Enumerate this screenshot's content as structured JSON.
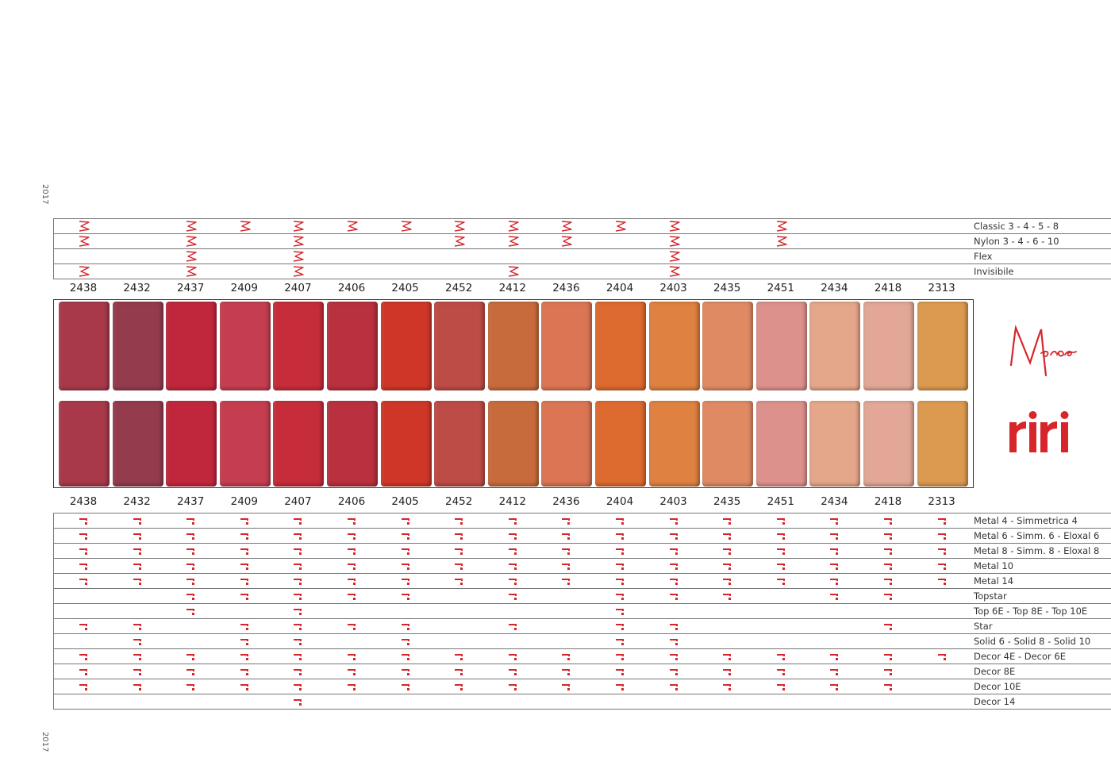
{
  "year_label": "2017",
  "codes": [
    "2438",
    "2432",
    "2437",
    "2409",
    "2407",
    "2406",
    "2405",
    "2452",
    "2412",
    "2436",
    "2404",
    "2403",
    "2435",
    "2451",
    "2434",
    "2418",
    "2313"
  ],
  "colors": [
    "#a8394a",
    "#943b4d",
    "#c0273c",
    "#c43e4f",
    "#c62c3a",
    "#b9303e",
    "#cf3628",
    "#bd4b46",
    "#c86b3c",
    "#db7553",
    "#dd6a2f",
    "#de8141",
    "#e08a64",
    "#dd918c",
    "#e5a789",
    "#e2a796",
    "#dc9a50"
  ],
  "zipper_rows": [
    {
      "label": "Classic 3 - 4 - 5 - 8",
      "marks": [
        1,
        0,
        1,
        1,
        1,
        1,
        1,
        1,
        1,
        1,
        1,
        1,
        0,
        1,
        0,
        0,
        0
      ]
    },
    {
      "label": "Nylon 3 - 4 - 6 - 10",
      "marks": [
        1,
        0,
        1,
        0,
        1,
        0,
        0,
        1,
        1,
        1,
        0,
        1,
        0,
        1,
        0,
        0,
        0
      ]
    },
    {
      "label": "Flex",
      "marks": [
        0,
        0,
        1,
        0,
        1,
        0,
        0,
        0,
        0,
        0,
        0,
        1,
        0,
        0,
        0,
        0,
        0
      ]
    },
    {
      "label": "Invisibile",
      "marks": [
        1,
        0,
        1,
        0,
        1,
        0,
        0,
        0,
        1,
        0,
        0,
        1,
        0,
        0,
        0,
        0,
        0
      ]
    }
  ],
  "riri_rows": [
    {
      "label": "Metal 4 - Simmetrica 4",
      "marks": [
        1,
        1,
        1,
        1,
        1,
        1,
        1,
        1,
        1,
        1,
        1,
        1,
        1,
        1,
        1,
        1,
        1
      ]
    },
    {
      "label": "Metal 6 - Simm. 6 - Eloxal 6",
      "marks": [
        1,
        1,
        1,
        1,
        1,
        1,
        1,
        1,
        1,
        1,
        1,
        1,
        1,
        1,
        1,
        1,
        1
      ]
    },
    {
      "label": "Metal 8 - Simm. 8 - Eloxal 8",
      "marks": [
        1,
        1,
        1,
        1,
        1,
        1,
        1,
        1,
        1,
        1,
        1,
        1,
        1,
        1,
        1,
        1,
        1
      ]
    },
    {
      "label": "Metal 10",
      "marks": [
        1,
        1,
        1,
        1,
        1,
        1,
        1,
        1,
        1,
        1,
        1,
        1,
        1,
        1,
        1,
        1,
        1
      ]
    },
    {
      "label": "Metal 14",
      "marks": [
        1,
        1,
        1,
        1,
        1,
        1,
        1,
        1,
        1,
        1,
        1,
        1,
        1,
        1,
        1,
        1,
        1
      ]
    },
    {
      "label": "Topstar",
      "marks": [
        0,
        0,
        1,
        1,
        1,
        1,
        1,
        0,
        1,
        0,
        1,
        1,
        1,
        0,
        1,
        1,
        0
      ]
    },
    {
      "label": "Top 6E - Top 8E - Top 10E",
      "marks": [
        0,
        0,
        1,
        0,
        1,
        0,
        0,
        0,
        0,
        0,
        1,
        0,
        0,
        0,
        0,
        0,
        0
      ]
    },
    {
      "label": "Star",
      "marks": [
        1,
        1,
        0,
        1,
        1,
        1,
        1,
        0,
        1,
        0,
        1,
        1,
        0,
        0,
        0,
        1,
        0
      ]
    },
    {
      "label": "Solid 6 - Solid 8 - Solid 10",
      "marks": [
        0,
        1,
        0,
        1,
        1,
        0,
        1,
        0,
        0,
        0,
        1,
        1,
        0,
        0,
        0,
        0,
        0
      ]
    },
    {
      "label": "Decor 4E - Decor 6E",
      "marks": [
        1,
        1,
        1,
        1,
        1,
        1,
        1,
        1,
        1,
        1,
        1,
        1,
        1,
        1,
        1,
        1,
        1
      ]
    },
    {
      "label": "Decor 8E",
      "marks": [
        1,
        1,
        1,
        1,
        1,
        1,
        1,
        1,
        1,
        1,
        1,
        1,
        1,
        1,
        1,
        1,
        0
      ]
    },
    {
      "label": "Decor 10E",
      "marks": [
        1,
        1,
        1,
        1,
        1,
        1,
        1,
        1,
        1,
        1,
        1,
        1,
        1,
        1,
        1,
        1,
        0
      ]
    },
    {
      "label": "Decor 14",
      "marks": [
        0,
        0,
        0,
        0,
        1,
        0,
        0,
        0,
        0,
        0,
        0,
        0,
        0,
        0,
        0,
        0,
        0
      ]
    }
  ],
  "logos": {
    "meras_text": "Meras",
    "riri_text": "riri"
  },
  "accent_color": "#d6262b",
  "icons": {
    "zipper_mark": "zigzag-zipper-icon",
    "riri_mark": "riri-pull-icon"
  }
}
